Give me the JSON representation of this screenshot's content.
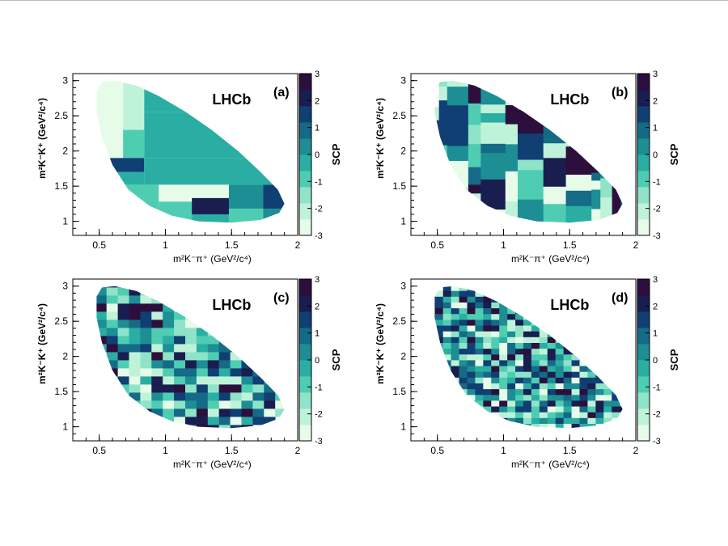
{
  "chart_data": [
    {
      "type": "heatmap",
      "panel_label": "(a)",
      "experiment": "LHCb",
      "xlabel": "m²K⁻π⁺ (GeV²/c⁴)",
      "ylabel": "m²K⁻K⁺ (GeV²/c⁴)",
      "xlim": [
        0.3,
        2.0
      ],
      "ylim": [
        0.8,
        3.1
      ],
      "x_ticks": [
        "0.5",
        "1",
        "1.5",
        "2"
      ],
      "y_ticks": [
        "1",
        "1.5",
        "2",
        "2.5",
        "3"
      ],
      "colorbar_label": "SCP",
      "colorbar_range": [
        -3,
        3
      ],
      "colorbar_ticks": [
        "-3",
        "-2",
        "-1",
        "0",
        "1",
        "2",
        "3"
      ],
      "binning": "adaptive",
      "cells": [
        {
          "x0": 0.3,
          "x1": 0.68,
          "y0": 1.55,
          "y1": 3.1,
          "v": -2.6
        },
        {
          "x0": 0.68,
          "x1": 0.84,
          "y0": 2.3,
          "y1": 3.1,
          "v": -2.1
        },
        {
          "x0": 0.84,
          "x1": 2.0,
          "y0": 2.55,
          "y1": 3.1,
          "v": -0.5
        },
        {
          "x0": 0.68,
          "x1": 0.84,
          "y0": 1.9,
          "y1": 2.3,
          "v": -1.0
        },
        {
          "x0": 0.84,
          "x1": 2.0,
          "y0": 1.9,
          "y1": 2.55,
          "v": -0.5
        },
        {
          "x0": 0.3,
          "x1": 0.56,
          "y0": 0.8,
          "y1": 1.55,
          "v": -0.8
        },
        {
          "x0": 0.56,
          "x1": 0.84,
          "y0": 1.7,
          "y1": 1.9,
          "v": 1.7
        },
        {
          "x0": 0.56,
          "x1": 0.84,
          "y0": 1.52,
          "y1": 1.7,
          "v": -0.5
        },
        {
          "x0": 0.84,
          "x1": 2.0,
          "y0": 1.52,
          "y1": 1.9,
          "v": -0.4
        },
        {
          "x0": 0.56,
          "x1": 0.95,
          "y0": 0.8,
          "y1": 1.52,
          "v": -0.8
        },
        {
          "x0": 0.95,
          "x1": 1.18,
          "y0": 1.28,
          "y1": 1.52,
          "v": -2.5
        },
        {
          "x0": 1.18,
          "x1": 1.48,
          "y0": 1.33,
          "y1": 1.52,
          "v": -2.9
        },
        {
          "x0": 1.48,
          "x1": 1.74,
          "y0": 1.18,
          "y1": 1.52,
          "v": 0.4
        },
        {
          "x0": 1.74,
          "x1": 2.0,
          "y0": 1.18,
          "y1": 1.52,
          "v": 1.7
        },
        {
          "x0": 0.95,
          "x1": 1.2,
          "y0": 0.8,
          "y1": 1.28,
          "v": -0.6
        },
        {
          "x0": 1.2,
          "x1": 1.48,
          "y0": 0.8,
          "y1": 1.33,
          "v": -0.4
        },
        {
          "x0": 1.2,
          "x1": 1.48,
          "y0": 1.1,
          "y1": 1.33,
          "v": 1.9
        },
        {
          "x0": 1.48,
          "x1": 1.74,
          "y0": 0.8,
          "y1": 1.18,
          "v": -0.8
        },
        {
          "x0": 1.74,
          "x1": 2.0,
          "y0": 0.8,
          "y1": 1.18,
          "v": 0.3
        }
      ]
    },
    {
      "type": "heatmap",
      "panel_label": "(b)",
      "experiment": "LHCb",
      "xlabel": "m²K⁻π⁺ (GeV²/c⁴)",
      "ylabel": "m²K⁻K⁺ (GeV²/c⁴)",
      "xlim": [
        0.3,
        2.0
      ],
      "ylim": [
        0.8,
        3.1
      ],
      "x_ticks": [
        "0.5",
        "1",
        "1.5",
        "2"
      ],
      "y_ticks": [
        "1",
        "1.5",
        "2",
        "2.5",
        "3"
      ],
      "colorbar_label": "SCP",
      "colorbar_range": [
        -3,
        3
      ],
      "colorbar_ticks": [
        "-3",
        "-2",
        "-1",
        "0",
        "1",
        "2",
        "3"
      ],
      "binning": "adaptive-fine",
      "seed": 17,
      "ncols": 14,
      "nrows": 15
    },
    {
      "type": "heatmap",
      "panel_label": "(c)",
      "experiment": "LHCb",
      "xlabel": "m²K⁻π⁺ (GeV²/c⁴)",
      "ylabel": "m²K⁻K⁺ (GeV²/c⁴)",
      "xlim": [
        0.3,
        2.0
      ],
      "ylim": [
        0.8,
        3.1
      ],
      "x_ticks": [
        "0.5",
        "1",
        "1.5",
        "2"
      ],
      "y_ticks": [
        "1",
        "1.5",
        "2",
        "2.5",
        "3"
      ],
      "colorbar_label": "SCP",
      "colorbar_range": [
        -3,
        3
      ],
      "colorbar_ticks": [
        "-3",
        "-2",
        "-1",
        "0",
        "1",
        "2",
        "3"
      ],
      "binning": "uniform",
      "seed": 41,
      "ncols": 20,
      "nrows": 20
    },
    {
      "type": "heatmap",
      "panel_label": "(d)",
      "experiment": "LHCb",
      "xlabel": "m²K⁻π⁺ (GeV²/c⁴)",
      "ylabel": "m²K⁻K⁺ (GeV²/c⁴)",
      "xlim": [
        0.3,
        2.0
      ],
      "ylim": [
        0.8,
        3.1
      ],
      "x_ticks": [
        "0.5",
        "1",
        "1.5",
        "2"
      ],
      "y_ticks": [
        "1",
        "1.5",
        "2",
        "2.5",
        "3"
      ],
      "colorbar_label": "SCP",
      "colorbar_range": [
        -3,
        3
      ],
      "colorbar_ticks": [
        "-3",
        "-2",
        "-1",
        "0",
        "1",
        "2",
        "3"
      ],
      "binning": "uniform",
      "seed": 93,
      "ncols": 28,
      "nrows": 28
    }
  ],
  "palette": [
    "#e7fbe9",
    "#bff3d9",
    "#8fe3c8",
    "#4fcdb3",
    "#2aaea3",
    "#1c8e94",
    "#156a86",
    "#103f73",
    "#1a1d50",
    "#2c0f3c"
  ],
  "frame_color": "#000000"
}
